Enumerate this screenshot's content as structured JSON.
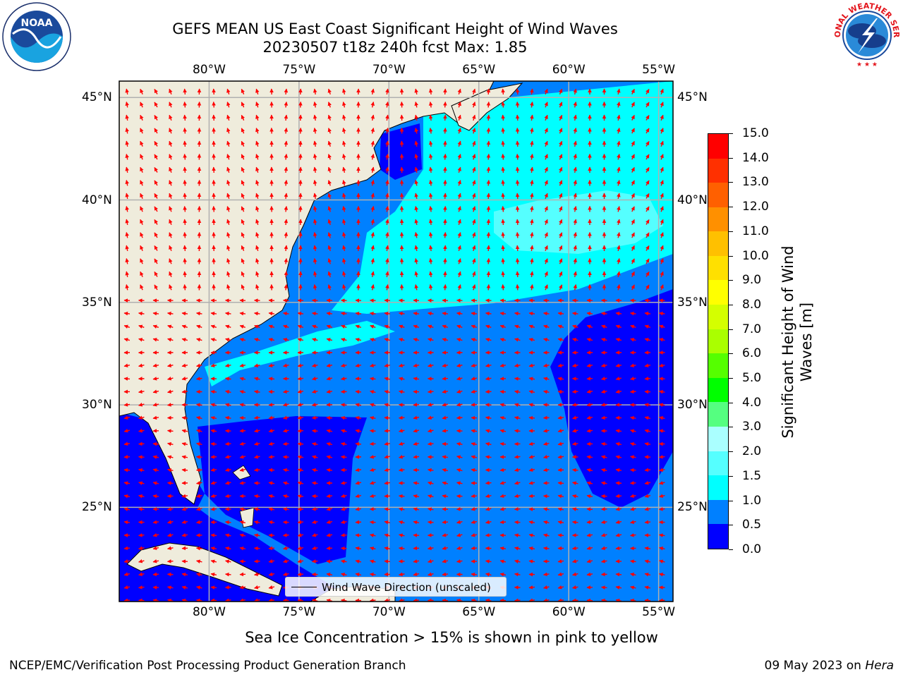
{
  "header": {
    "title_line1": "GEFS MEAN US East Coast Significant Height of Wind Waves",
    "title_line2": "20230507 t18z 240h fcst   Max: 1.85"
  },
  "logos": {
    "left": "NOAA",
    "left_ring_text": "NATIONAL OCEANIC AND ATMOSPHERIC ADMINISTRATION · U.S. DEPARTMENT OF COMMERCE",
    "right_ring_text": "NATIONAL WEATHER SERVICE"
  },
  "map": {
    "lon_labels": [
      "80°W",
      "75°W",
      "70°W",
      "65°W",
      "60°W",
      "55°W"
    ],
    "lat_labels": [
      "45°N",
      "40°N",
      "35°N",
      "30°N",
      "25°N"
    ],
    "lon_values": [
      -80,
      -75,
      -70,
      -65,
      -60,
      -55
    ],
    "lat_values": [
      45,
      40,
      35,
      30,
      25
    ],
    "extent": {
      "lon": [
        -85,
        -54.2
      ],
      "lat": [
        20.4,
        45.8
      ]
    },
    "land_color": "#efecdc",
    "ice_note": "Sea Ice Concentration > 15% is shown in pink to yellow",
    "legend_label": "Wind Wave Direction (unscaled)",
    "arrow_color": "#ff0000"
  },
  "colorbar": {
    "label": "Significant Height of Wind Waves [m]",
    "bounds": [
      0.0,
      0.5,
      1.0,
      1.5,
      2.0,
      3.0,
      4.0,
      5.0,
      6.0,
      7.0,
      8.0,
      9.0,
      10.0,
      11.0,
      12.0,
      13.0,
      14.0,
      15.0
    ],
    "tick_labels": [
      "0.0",
      "0.5",
      "1.0",
      "1.5",
      "2.0",
      "3.0",
      "4.0",
      "5.0",
      "6.0",
      "7.0",
      "8.0",
      "9.0",
      "10.0",
      "11.0",
      "12.0",
      "13.0",
      "14.0",
      "15.0"
    ],
    "colors": [
      "#0000ff",
      "#0080ff",
      "#00ffff",
      "#55ffff",
      "#aaffff",
      "#55ff80",
      "#00ff00",
      "#55ff00",
      "#aaff00",
      "#d4ff00",
      "#ffff00",
      "#ffe000",
      "#ffc000",
      "#ff9000",
      "#ff6000",
      "#ff3000",
      "#ff0000"
    ]
  },
  "footer": {
    "left": "NCEP/EMC/Verification Post Processing Product Generation Branch",
    "right_date": "09 May 2023 on",
    "right_host": "Hera"
  }
}
